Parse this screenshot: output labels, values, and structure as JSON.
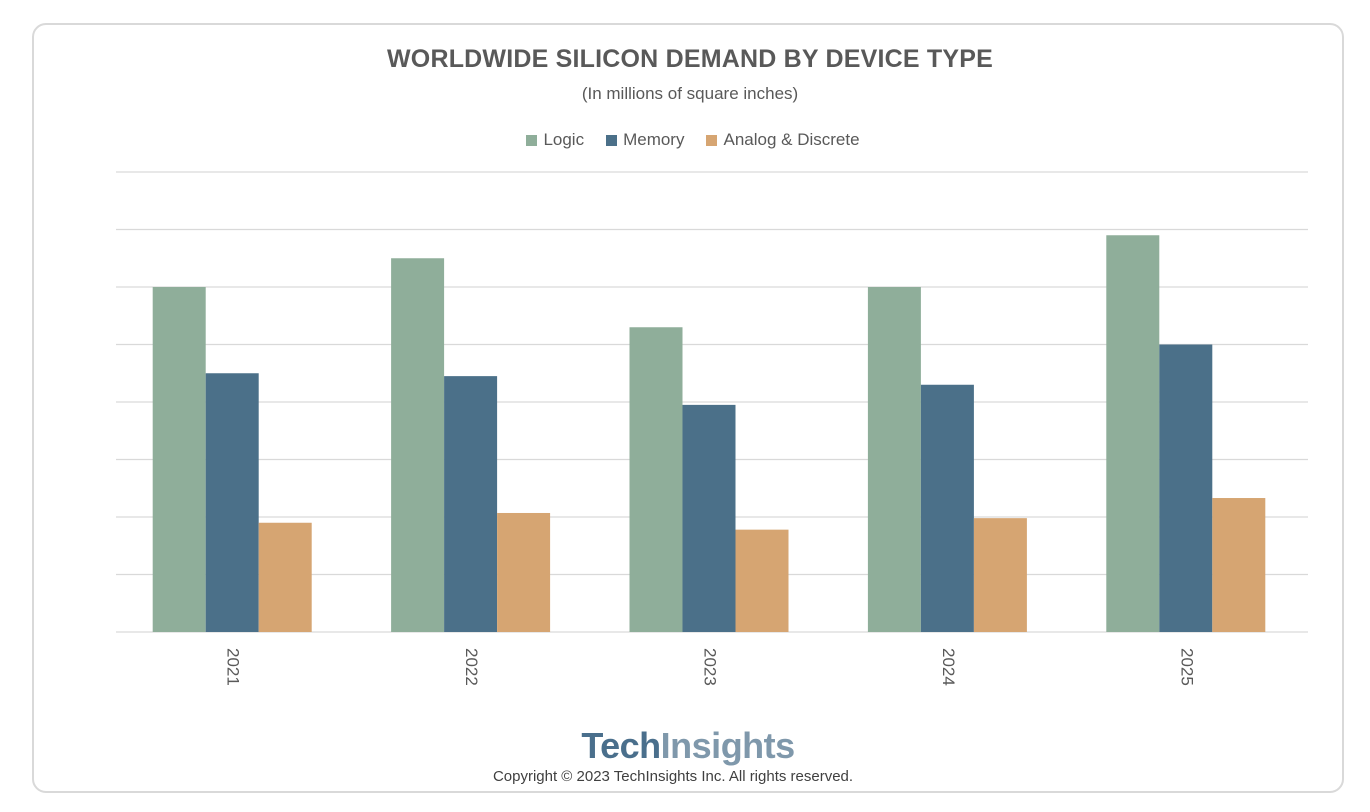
{
  "chart_data": {
    "type": "bar",
    "title": "WORLDWIDE SILICON DEMAND BY DEVICE TYPE",
    "subtitle": "(In millions of square inches)",
    "categories": [
      "2021",
      "2022",
      "2023",
      "2024",
      "2025"
    ],
    "series": [
      {
        "name": "Logic",
        "color": "#8fae9a",
        "values": [
          6.0,
          6.5,
          5.3,
          6.0,
          6.9
        ]
      },
      {
        "name": "Memory",
        "color": "#4b7089",
        "values": [
          4.5,
          4.45,
          3.95,
          4.3,
          5.0
        ]
      },
      {
        "name": "Analog & Discrete",
        "color": "#d6a572",
        "values": [
          1.9,
          2.07,
          1.78,
          1.98,
          2.33
        ]
      }
    ],
    "ylim": [
      0,
      8
    ],
    "gridlines": 8,
    "xlabel": "",
    "ylabel": "",
    "legend_position": "top-center"
  },
  "footer": {
    "logo_tech": "Tech",
    "logo_insights": "Insights",
    "copyright": "Copyright © 2023 TechInsights Inc.  All rights reserved."
  }
}
